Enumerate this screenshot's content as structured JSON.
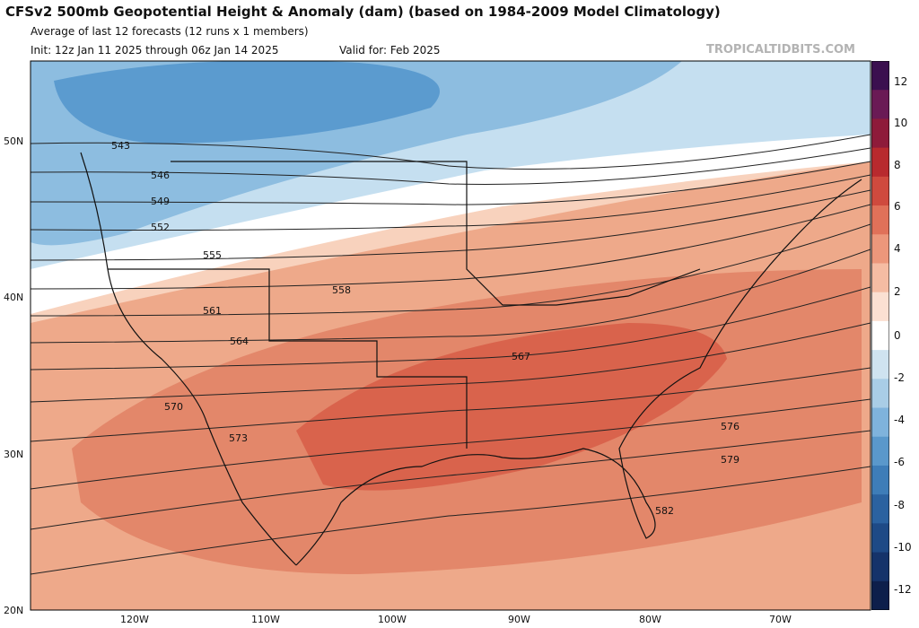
{
  "header": {
    "title": "CFSv2 500mb Geopotential Height & Anomaly (dam) (based on 1984-2009 Model Climatology)",
    "subtitle": "Average of last 12 forecasts (12 runs x 1 members)",
    "init": "Init: 12z Jan 11 2025 through 06z Jan 14 2025",
    "valid": "Valid for: Feb 2025",
    "source": "TROPICALTIDBITS.COM"
  },
  "axes": {
    "lat_labels": [
      "50N",
      "40N",
      "30N",
      "20N"
    ],
    "lon_labels": [
      "120W",
      "110W",
      "100W",
      "90W",
      "80W",
      "70W"
    ]
  },
  "colorbar": {
    "labels": [
      "12",
      "10",
      "8",
      "6",
      "4",
      "2",
      "0",
      "-2",
      "-4",
      "-6",
      "-8",
      "-10",
      "-12"
    ],
    "colors": [
      "#3b0f4f",
      "#6a1a55",
      "#8e1b3a",
      "#b82a2e",
      "#cf4a3e",
      "#e07159",
      "#ec977b",
      "#f5bca3",
      "#fbe0d2",
      "#ffffff",
      "#cfe3f0",
      "#a9cde6",
      "#7fb3dc",
      "#5a98cb",
      "#3e7db8",
      "#2b62a0",
      "#1e4a86",
      "#15336a",
      "#0d1f4b"
    ]
  },
  "contour_labels": [
    "543",
    "546",
    "549",
    "552",
    "555",
    "558",
    "561",
    "564",
    "567",
    "570",
    "573",
    "576",
    "579",
    "582"
  ],
  "map_data": {
    "colors": {
      "neg_strong": "#5b9bcf",
      "neg_mid": "#8dbde0",
      "neg_light": "#c5dff0",
      "neutral": "#ffffff",
      "pos_light": "#f8d2bd",
      "pos_mid": "#eea98a",
      "pos_strong": "#e3876a",
      "pos_max": "#d9634c"
    }
  }
}
